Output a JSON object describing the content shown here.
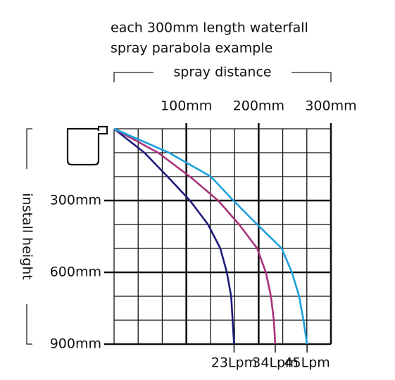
{
  "chart_data": {
    "type": "line",
    "title": [
      "each 300mm length waterfall",
      "spray parabola example"
    ],
    "x_label": "spray distance",
    "y_label": "install height",
    "heights": [
      0,
      100,
      200,
      300,
      400,
      500,
      600,
      700,
      800,
      900
    ],
    "series": [
      {
        "name": "23Lpm",
        "color": "#1f1b7a",
        "values": [
          0,
          42,
          74,
          105,
          130,
          147,
          156,
          162,
          164,
          166
        ]
      },
      {
        "name": "34Lpm",
        "color": "#a8327a",
        "values": [
          0,
          61,
          105,
          144,
          173,
          198,
          210,
          217,
          221,
          223
        ]
      },
      {
        "name": "45Lpm",
        "color": "#1ba0dc",
        "values": [
          0,
          76,
          134,
          165,
          198,
          232,
          246,
          256,
          262,
          267
        ]
      }
    ],
    "xlim": [
      0,
      300
    ],
    "ylim": [
      0,
      900
    ],
    "xticks": [
      {
        "value": 100,
        "label": "100mm"
      },
      {
        "value": 200,
        "label": "200mm"
      },
      {
        "value": 300,
        "label": "300mm"
      }
    ],
    "yticks": [
      {
        "value": 300,
        "label": "300mm"
      },
      {
        "value": 600,
        "label": "600mm"
      },
      {
        "value": 900,
        "label": "900mm"
      }
    ],
    "grid": true,
    "grid_divisions": 3
  }
}
